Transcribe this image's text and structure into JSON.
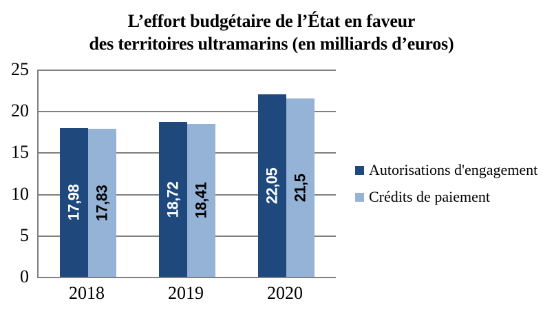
{
  "title": {
    "line1": "L’effort budgétaire de l’État en faveur",
    "line2": "des territoires ultramarins (en milliards d’euros)"
  },
  "colors": {
    "series1": "#1F497D",
    "series2": "#95B3D7",
    "gridline": "#808080",
    "axis": "#808080",
    "background": "#FFFFFF",
    "label_on_series1": "#FFFFFF",
    "label_on_series2": "#000000"
  },
  "chart_data": {
    "type": "bar",
    "title": "L’effort budgétaire de l’État en faveur des territoires ultramarins (en milliards d’euros)",
    "categories": [
      "2018",
      "2019",
      "2020"
    ],
    "series": [
      {
        "name": "Autorisations d'engagement",
        "color": "#1F497D",
        "values": [
          17.98,
          18.72,
          22.05
        ],
        "value_labels": [
          "17,98",
          "18,72",
          "22,05"
        ],
        "label_color": "#FFFFFF"
      },
      {
        "name": "Crédits de paiement",
        "color": "#95B3D7",
        "values": [
          17.83,
          18.41,
          21.5
        ],
        "value_labels": [
          "17,83",
          "18,41",
          "21,5"
        ],
        "label_color": "#000000"
      }
    ],
    "xlabel": "",
    "ylabel": "",
    "ylim": [
      0,
      25
    ],
    "yticks": [
      0,
      5,
      10,
      15,
      20,
      25
    ],
    "grid": true,
    "legend_position": "right",
    "value_labels_rotated": true
  }
}
